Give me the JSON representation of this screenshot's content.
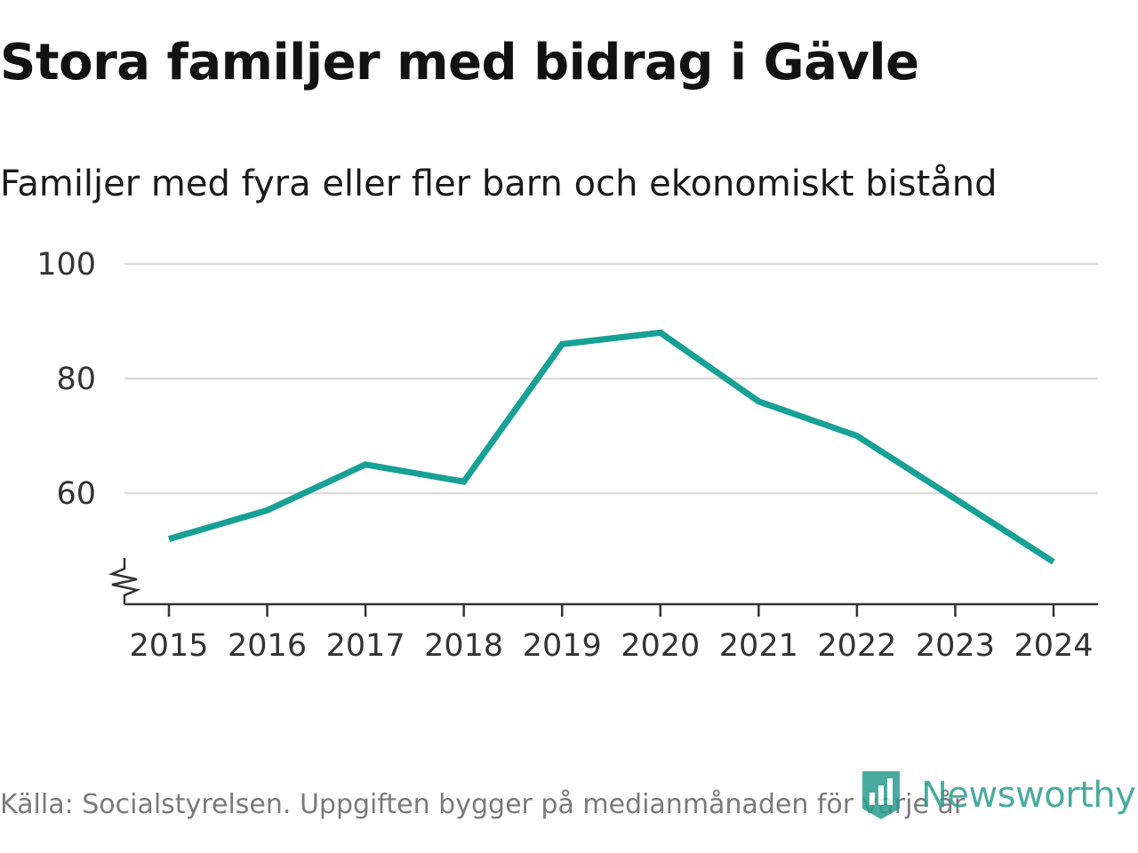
{
  "title": "Stora familjer med bidrag i Gävle",
  "subtitle": "Familjer med fyra eller fler barn och ekonomiskt bistånd",
  "source": "Källa: Socialstyrelsen. Uppgiften bygger på medianmånaden för varje år",
  "logo": {
    "text": "Newsworthy",
    "color": "#2a9d8f"
  },
  "chart_data": {
    "type": "line",
    "title": "Stora familjer med bidrag i Gävle",
    "subtitle": "Familjer med fyra eller fler barn och ekonomiskt bistånd",
    "xlabel": "",
    "ylabel": "",
    "x": [
      "2015",
      "2016",
      "2017",
      "2018",
      "2019",
      "2020",
      "2021",
      "2022",
      "2023",
      "2024"
    ],
    "series": [
      {
        "values": [
          52,
          57,
          65,
          62,
          86,
          88,
          76,
          70,
          59,
          48
        ],
        "color": "#17a096"
      }
    ],
    "yticks": [
      "60",
      "80",
      "100"
    ],
    "ylim": [
      41,
      100
    ],
    "y_axis_break": true,
    "grid": true
  }
}
